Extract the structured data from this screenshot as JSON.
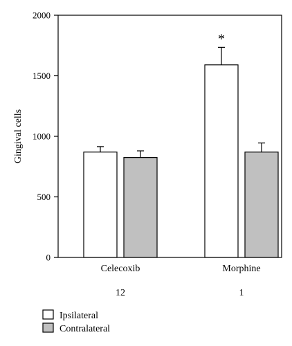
{
  "chart_data": {
    "type": "bar",
    "title": "",
    "xlabel": "",
    "ylabel": "Gingival cells",
    "ylim": [
      0,
      2000
    ],
    "yticks": [
      0,
      500,
      1000,
      1500,
      2000
    ],
    "categories": [
      "Celecoxib",
      "Morphine"
    ],
    "sublabels": [
      "12",
      "1"
    ],
    "series": [
      {
        "name": "Ipsilateral",
        "color": "#ffffff",
        "values": [
          870,
          1590
        ],
        "errors": [
          45,
          145
        ]
      },
      {
        "name": "Contralateral",
        "color": "#c0c0c0",
        "values": [
          825,
          870
        ],
        "errors": [
          55,
          75
        ]
      }
    ],
    "annotations": [
      {
        "category": "Morphine",
        "series": "Ipsilateral",
        "text": "*"
      }
    ],
    "grid": false,
    "legend": "bottom-left"
  }
}
